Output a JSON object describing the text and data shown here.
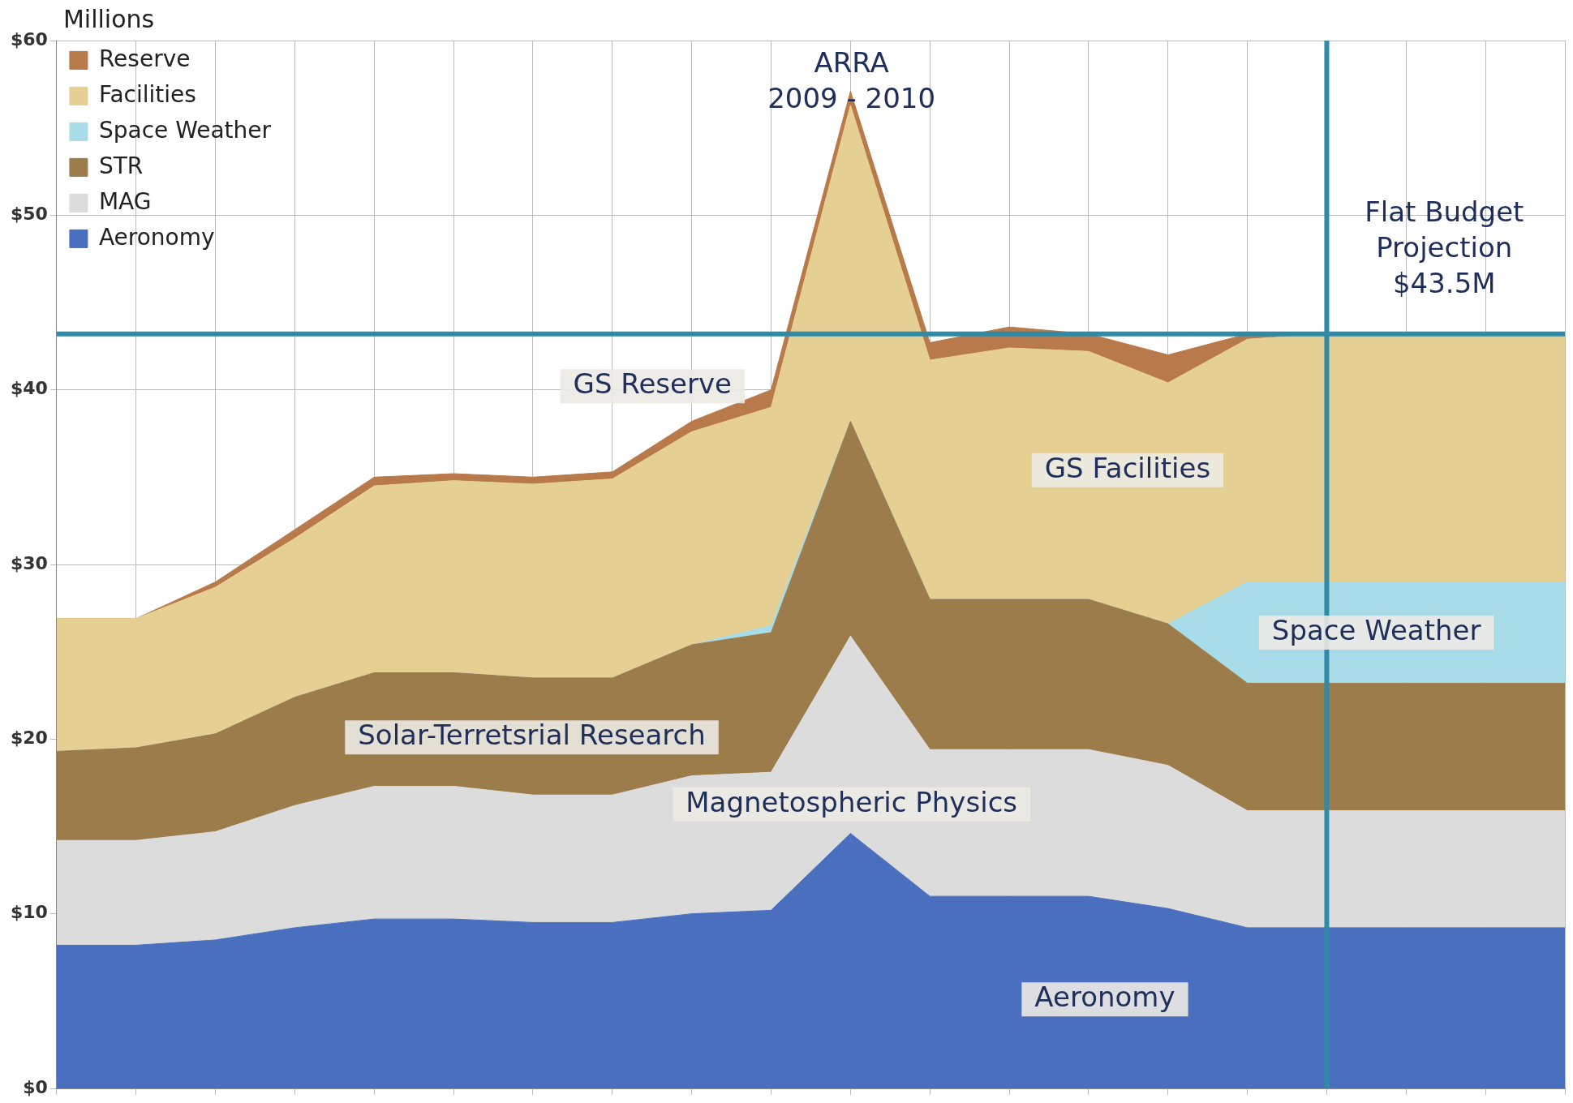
{
  "chart_data": {
    "type": "area",
    "ylabel": "Millions",
    "stacked": true,
    "marker": "none",
    "grid": true,
    "legend": "top left",
    "tick_labels": "y",
    "categories": [
      null,
      null,
      null,
      null,
      null,
      null,
      null,
      null,
      null,
      null,
      null,
      null,
      null,
      null,
      null,
      null,
      null,
      null,
      null,
      null
    ],
    "ylim": [
      0,
      60
    ],
    "yticks": [
      {
        "value": 0,
        "label": "$0"
      },
      {
        "value": 10,
        "label": "$10"
      },
      {
        "value": 20,
        "label": "$20"
      },
      {
        "value": 30,
        "label": "$30"
      },
      {
        "value": 40,
        "label": "$40"
      },
      {
        "value": 50,
        "label": "$50"
      },
      {
        "value": 60,
        "label": "$60"
      }
    ],
    "series": [
      {
        "name": "Aeronomy",
        "color": "#4a6fbf",
        "values": [
          8.2,
          8.2,
          8.5,
          9.2,
          9.7,
          9.7,
          9.5,
          9.5,
          10.0,
          10.2,
          14.6,
          11.0,
          11.0,
          11.0,
          10.3,
          9.2,
          9.2,
          9.2,
          9.2,
          9.2
        ]
      },
      {
        "name": "MAG",
        "color": "#dcdcdc",
        "values": [
          6.0,
          6.0,
          6.2,
          7.0,
          7.6,
          7.6,
          7.3,
          7.3,
          7.9,
          7.9,
          11.3,
          8.4,
          8.4,
          8.4,
          8.2,
          6.7,
          6.7,
          6.7,
          6.7,
          6.7
        ]
      },
      {
        "name": "STR",
        "color": "#9c7c4a",
        "values": [
          5.1,
          5.3,
          5.6,
          6.2,
          6.5,
          6.5,
          6.7,
          6.7,
          7.5,
          8.0,
          12.3,
          8.6,
          8.6,
          8.6,
          8.1,
          7.3,
          7.3,
          7.3,
          7.3,
          7.3
        ]
      },
      {
        "name": "Space Weather",
        "color": "#a8dce8",
        "values": [
          0,
          0,
          0,
          0,
          0,
          0,
          0,
          0,
          0,
          0.4,
          0,
          0,
          0,
          0,
          0,
          5.8,
          5.8,
          5.8,
          5.8,
          5.8
        ]
      },
      {
        "name": "Facilities",
        "color": "#e6cf92",
        "values": [
          7.6,
          7.4,
          8.4,
          9.1,
          10.7,
          11.0,
          11.1,
          11.4,
          12.2,
          12.5,
          18.1,
          13.7,
          14.4,
          14.2,
          13.8,
          13.9,
          14.2,
          14.2,
          14.2,
          14.2
        ]
      },
      {
        "name": "Reserve",
        "color": "#b87a4a",
        "values": [
          0,
          0,
          0.3,
          0.5,
          0.5,
          0.4,
          0.4,
          0.4,
          0.6,
          1.0,
          0.8,
          1.0,
          1.2,
          1.0,
          1.6,
          0.3,
          0,
          0,
          0,
          0
        ]
      }
    ],
    "ref_lines": [
      {
        "axis": "y",
        "value": 43.2,
        "color": "#2e8aa6"
      },
      {
        "axis": "x",
        "color": "#2e8aa6"
      }
    ],
    "annotations": [
      "ARRA\n2009 - 2010",
      "GS Reserve",
      "GS Facilities",
      "Space Weather",
      "Solar-Terretsrial Research",
      "Magnetospheric Physics",
      "Aeronomy",
      "Flat Budget\nProjection\n$43.5M"
    ]
  }
}
